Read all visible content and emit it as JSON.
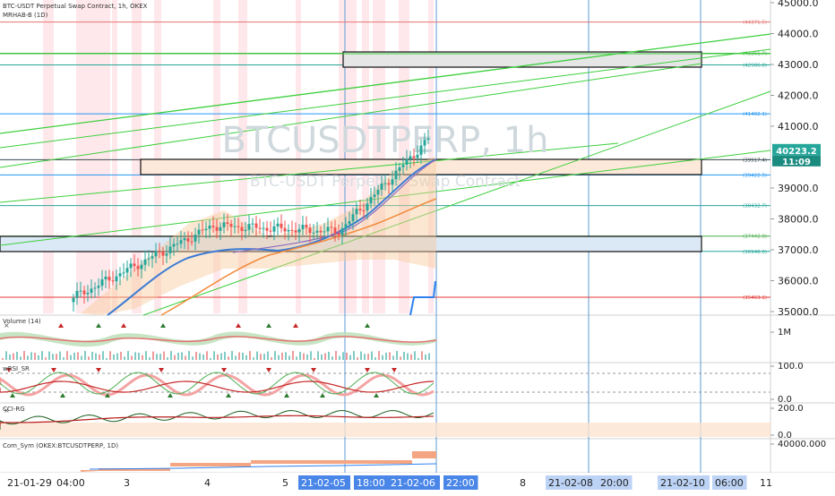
{
  "header": {
    "symbol_line": "BTC-USDT Perpetual Swap Contract, 1h, OKEX",
    "indicator_line": "MRHAB-B (1D)"
  },
  "watermark": {
    "ticker": "BTCUSDTPERP, 1h",
    "description": "BTC-USDT Perpetual Swap Contract"
  },
  "price_axis": {
    "labels": [
      "45000.0",
      "44000.0",
      "43000.0",
      "42000.0",
      "41000.0",
      "39000.0",
      "38000.0",
      "37000.0",
      "36000.0",
      "35000.0"
    ],
    "current_price": "40223.2",
    "countdown": "11:09",
    "colors": {
      "current_bg": "#26a69a",
      "countdown_bg": "#1b8a7f"
    }
  },
  "levels": [
    {
      "label": "(44371.5)",
      "color": "#e57373",
      "price": 44371.5
    },
    {
      "label": "(43361.7)",
      "color": "#4caf50",
      "price": 43361.7
    },
    {
      "label": "(42986.8)",
      "color": "#26a69a",
      "price": 42986.8
    },
    {
      "label": "(41402.1)",
      "color": "#2196f3",
      "price": 41402.1
    },
    {
      "label": "(39917.4)",
      "color": "#37474f",
      "price": 39917.4
    },
    {
      "label": "(39422.5)",
      "color": "#2196f3",
      "price": 39422.5
    },
    {
      "label": "(38432.7)",
      "color": "#26a69a",
      "price": 38432.7
    },
    {
      "label": "(37442.9)",
      "color": "#4caf50",
      "price": 37442.9
    },
    {
      "label": "(36948.0)",
      "color": "#26a69a",
      "price": 36948.0
    },
    {
      "label": "(35463.1)",
      "color": "#e53935",
      "price": 35463.1
    }
  ],
  "panes": {
    "volume": {
      "label": "Volume (14)",
      "axis": [
        "1M"
      ]
    },
    "wrsi": {
      "label": "wRSI_SR",
      "axis": [
        "100.0",
        "0.0"
      ]
    },
    "cci": {
      "label": "CCI-RG",
      "axis": [
        "200.0",
        "0.0"
      ]
    },
    "comsym": {
      "label": "Com_Sym (OKEX:BTCUSDTPERP, 1D)",
      "axis": [
        "40000.000"
      ]
    }
  },
  "time_axis": {
    "labels": [
      {
        "text": "21-01-29",
        "highlight": false
      },
      {
        "text": "04:00",
        "highlight": false
      },
      {
        "text": "3",
        "highlight": false
      },
      {
        "text": "4",
        "highlight": false
      },
      {
        "text": "5",
        "highlight": false
      },
      {
        "text": "21-02-05",
        "highlight": true
      },
      {
        "text": "18:00",
        "highlight": true
      },
      {
        "text": "21-02-06",
        "highlight": true
      },
      {
        "text": "22:00",
        "highlight": true
      },
      {
        "text": "8",
        "highlight": false
      },
      {
        "text": "21-02-08",
        "highlight": false
      },
      {
        "text": "20:00",
        "highlight": false
      },
      {
        "text": "21-02-10",
        "highlight": false
      },
      {
        "text": "06:00",
        "highlight": false
      },
      {
        "text": "11",
        "highlight": false
      }
    ],
    "colors": {
      "highlight_bg": "#4a86e8",
      "soft_bg": "#bcd3f5"
    }
  },
  "icons": [
    "close-icon",
    "gear-icon"
  ]
}
